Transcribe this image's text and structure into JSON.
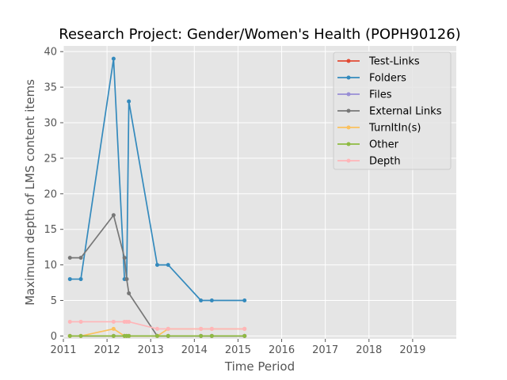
{
  "chart_data": {
    "type": "line",
    "title": "Research Project: Gender/Women's Health (POPH90126)",
    "xlabel": "Time Period",
    "ylabel": "Maximum depth of LMS content items",
    "xlim": [
      2011.0,
      2020.0
    ],
    "ylim": [
      -0.4,
      40.8
    ],
    "xticks": [
      2011,
      2012,
      2013,
      2014,
      2015,
      2016,
      2017,
      2018,
      2019
    ],
    "xtick_labels": [
      "2011",
      "2012",
      "2013",
      "2014",
      "2015",
      "2016",
      "2017",
      "2018",
      "2019"
    ],
    "yticks": [
      0,
      5,
      10,
      15,
      20,
      25,
      30,
      35,
      40
    ],
    "ytick_labels": [
      "0",
      "5",
      "10",
      "15",
      "20",
      "25",
      "30",
      "35",
      "40"
    ],
    "grid": true,
    "legend_position": "top-right",
    "x": [
      2011.15,
      2011.4,
      2012.15,
      2012.4,
      2012.45,
      2012.5,
      2013.15,
      2013.4,
      2014.15,
      2014.4,
      2015.15
    ],
    "series": [
      {
        "name": "Test-Links",
        "color": "#E24A33",
        "values": [
          0,
          0,
          0,
          0,
          0,
          0,
          0,
          0,
          0,
          0,
          0
        ]
      },
      {
        "name": "Folders",
        "color": "#348ABD",
        "values": [
          8,
          8,
          39,
          8,
          8,
          33,
          10,
          10,
          5,
          5,
          5
        ]
      },
      {
        "name": "Files",
        "color": "#988ED5",
        "values": [
          0,
          0,
          0,
          0,
          0,
          0,
          0,
          0,
          0,
          0,
          0
        ]
      },
      {
        "name": "External Links",
        "color": "#777777",
        "values": [
          11,
          11,
          17,
          11,
          8,
          6,
          0,
          0,
          0,
          0,
          0
        ]
      },
      {
        "name": "TurnItIn(s)",
        "color": "#FBC15E",
        "values": [
          0,
          0,
          1,
          0,
          0,
          0,
          0,
          1,
          1,
          1,
          1
        ]
      },
      {
        "name": "Other",
        "color": "#8EBA42",
        "values": [
          0,
          0,
          0,
          0,
          0,
          0,
          0,
          0,
          0,
          0,
          0
        ]
      },
      {
        "name": "Depth",
        "color": "#FFB5B8",
        "values": [
          2,
          2,
          2,
          2,
          2,
          2,
          1,
          1,
          1,
          1,
          1
        ]
      }
    ]
  }
}
